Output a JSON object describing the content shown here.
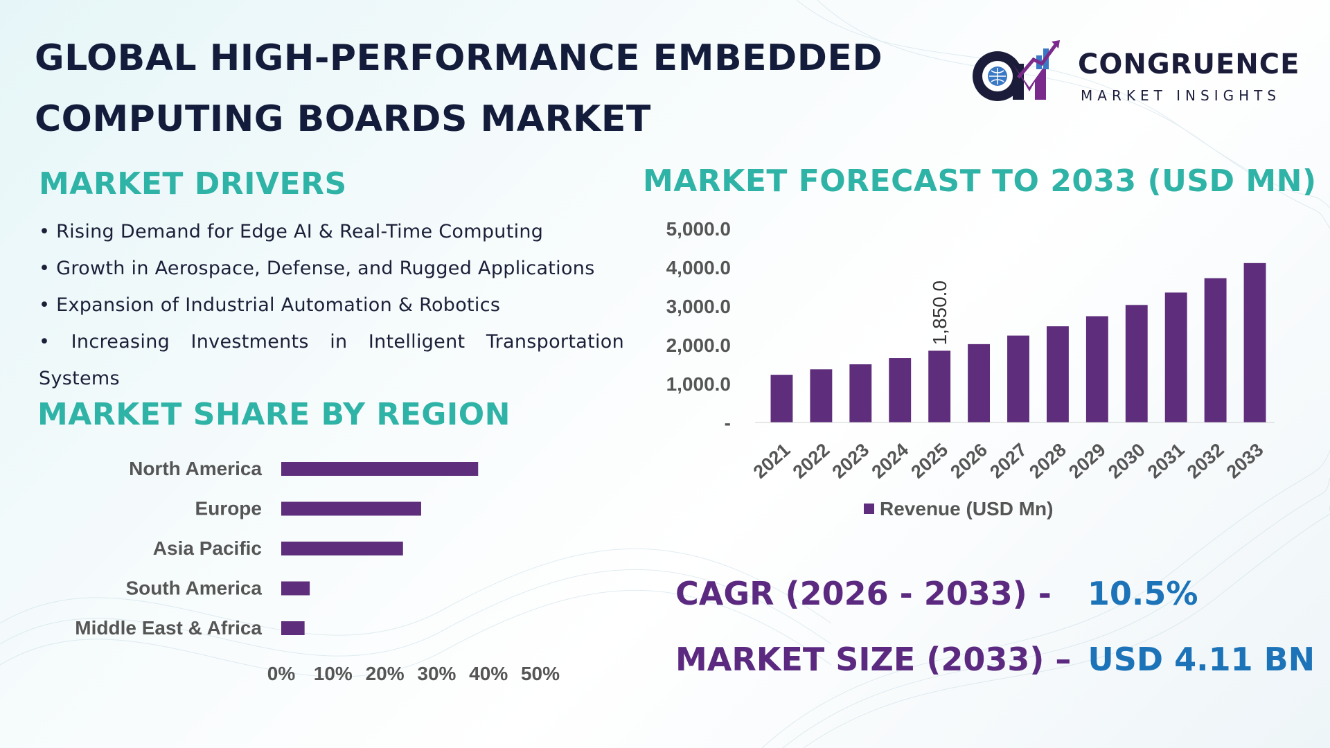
{
  "title": {
    "line1": "GLOBAL HIGH-PERFORMANCE EMBEDDED",
    "line2": "COMPUTING BOARDS MARKET"
  },
  "logo": {
    "name": "CONGRUENCE",
    "tagline": "MARKET INSIGHTS",
    "monogram": "CM"
  },
  "drivers": {
    "heading": "MARKET DRIVERS",
    "items": [
      "• Rising Demand for Edge AI & Real-Time Computing",
      "• Growth in Aerospace, Defense, and Rugged Applications",
      "• Expansion of Industrial Automation & Robotics",
      "• Increasing Investments in Intelligent Transportation",
      "Systems"
    ]
  },
  "region": {
    "heading": "MARKET SHARE BY REGION"
  },
  "forecast": {
    "heading": "MARKET FORECAST TO 2033 (USD MN)"
  },
  "kpis": {
    "cagr_label": "CAGR (2026 - 2033) -",
    "cagr_value": "10.5%",
    "size_label": "MARKET SIZE (2033) –",
    "size_value": "USD 4.11 BN"
  },
  "colors": {
    "bar": "#5e2d7b",
    "heading": "#2fb3a6",
    "kpi_label": "#5b2a80",
    "kpi_value": "#1c73b8",
    "title": "#141c3b"
  },
  "chart_data": [
    {
      "type": "bar",
      "orientation": "horizontal",
      "categories": [
        "North America",
        "Europe",
        "Asia Pacific",
        "South America",
        "Middle East & Africa"
      ],
      "values": [
        0.38,
        0.27,
        0.235,
        0.055,
        0.045
      ],
      "xlim": [
        0,
        0.5
      ],
      "x_ticks": [
        "0%",
        "10%",
        "20%",
        "30%",
        "40%",
        "50%"
      ],
      "grid": false
    },
    {
      "type": "bar",
      "categories": [
        "2021",
        "2022",
        "2023",
        "2024",
        "2025",
        "2026",
        "2027",
        "2028",
        "2029",
        "2030",
        "2031",
        "2032",
        "2033"
      ],
      "series": [
        {
          "name": "Revenue (USD Mn)",
          "values": [
            1230,
            1370,
            1500,
            1660,
            1850,
            2020,
            2240,
            2480,
            2740,
            3030,
            3350,
            3720,
            4110
          ]
        }
      ],
      "data_labels": [
        {
          "category": "2025",
          "text": "1,850.0"
        }
      ],
      "y_ticks": [
        "-",
        "1,000.0",
        "2,000.0",
        "3,000.0",
        "4,000.0",
        "5,000.0"
      ],
      "ylim": [
        0,
        5000
      ],
      "legend": "bottom",
      "grid": false
    }
  ]
}
